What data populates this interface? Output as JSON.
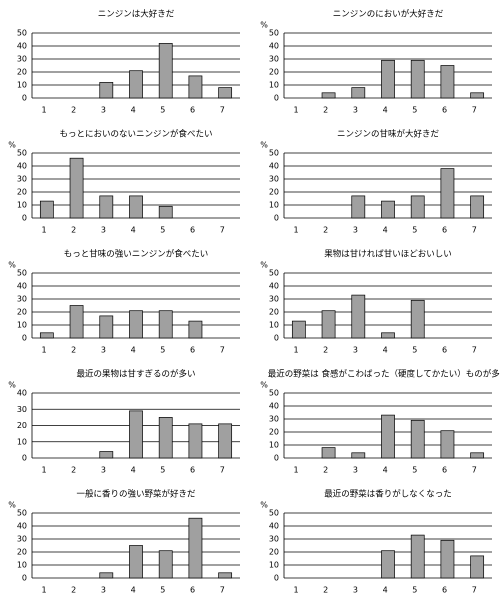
{
  "chart_data": [
    {
      "type": "bar",
      "title": "ニンジンは大好きだ",
      "categories": [
        "1",
        "2",
        "3",
        "4",
        "5",
        "6",
        "7"
      ],
      "values": [
        0,
        0,
        12,
        21,
        42,
        17,
        8
      ],
      "color": "#a0a0a0",
      "ylim": [
        0,
        50
      ],
      "yticks": [
        0,
        10,
        20,
        30,
        40,
        50
      ],
      "grid": true
    },
    {
      "type": "bar",
      "title": "ニンジンのにおいが大好きだ",
      "ylabel": "%",
      "categories": [
        "1",
        "2",
        "3",
        "4",
        "5",
        "6",
        "7"
      ],
      "values": [
        0,
        4,
        8,
        29,
        29,
        25,
        4
      ],
      "color": "#a0a0a0",
      "ylim": [
        0,
        50
      ],
      "yticks": [
        0,
        10,
        20,
        30,
        40,
        50
      ],
      "grid": true
    },
    {
      "type": "bar",
      "title": "もっとにおいのないニンジンが食べたい",
      "ylabel": "%",
      "categories": [
        "1",
        "2",
        "3",
        "4",
        "5",
        "6",
        "7"
      ],
      "values": [
        13,
        46,
        17,
        17,
        9,
        0,
        0
      ],
      "color": "#a0a0a0",
      "ylim": [
        0,
        50
      ],
      "yticks": [
        0,
        10,
        20,
        30,
        40,
        50
      ],
      "grid": true
    },
    {
      "type": "bar",
      "title": "ニンジンの甘味が大好きだ",
      "ylabel": "%",
      "categories": [
        "1",
        "2",
        "3",
        "4",
        "5",
        "6",
        "7"
      ],
      "values": [
        0,
        0,
        17,
        13,
        17,
        38,
        17
      ],
      "color": "#a0a0a0",
      "ylim": [
        0,
        50
      ],
      "yticks": [
        0,
        10,
        20,
        30,
        40,
        50
      ],
      "grid": true
    },
    {
      "type": "bar",
      "title": "もっと甘味の強いニンジンが食べたい",
      "ylabel": "%",
      "categories": [
        "1",
        "2",
        "3",
        "4",
        "5",
        "6",
        "7"
      ],
      "values": [
        4,
        25,
        17,
        21,
        21,
        13,
        0
      ],
      "color": "#a0a0a0",
      "ylim": [
        0,
        50
      ],
      "yticks": [
        0,
        10,
        20,
        30,
        40,
        50
      ],
      "grid": true
    },
    {
      "type": "bar",
      "title": "果物は甘ければ甘いほどおいしい",
      "ylabel": "%",
      "categories": [
        "1",
        "2",
        "3",
        "4",
        "5",
        "6",
        "7"
      ],
      "values": [
        13,
        21,
        33,
        4,
        29,
        0,
        0
      ],
      "color": "#a0a0a0",
      "ylim": [
        0,
        50
      ],
      "yticks": [
        0,
        10,
        20,
        30,
        40,
        50
      ],
      "grid": true
    },
    {
      "type": "bar",
      "title": "最近の果物は甘すぎるのが多い",
      "ylabel": "%",
      "categories": [
        "1",
        "2",
        "3",
        "4",
        "5",
        "6",
        "7"
      ],
      "values": [
        0,
        0,
        4,
        29,
        25,
        21,
        21
      ],
      "color": "#a0a0a0",
      "ylim": [
        0,
        40
      ],
      "yticks": [
        0,
        10,
        20,
        30,
        40
      ],
      "grid": true
    },
    {
      "type": "bar",
      "title": "最近の野菜は 食感がこわばった（硬度してかたい）ものが多い",
      "ylabel": "%",
      "categories": [
        "1",
        "2",
        "3",
        "4",
        "5",
        "6",
        "7"
      ],
      "values": [
        0,
        8,
        4,
        33,
        29,
        21,
        4
      ],
      "color": "#a0a0a0",
      "ylim": [
        0,
        50
      ],
      "yticks": [
        0,
        10,
        20,
        30,
        40,
        50
      ],
      "grid": true
    },
    {
      "type": "bar",
      "title": "一般に香りの強い野菜が好きだ",
      "ylabel": "%",
      "categories": [
        "1",
        "2",
        "3",
        "4",
        "5",
        "6",
        "7"
      ],
      "values": [
        0,
        0,
        4,
        25,
        21,
        46,
        4
      ],
      "color": "#a0a0a0",
      "ylim": [
        0,
        50
      ],
      "yticks": [
        0,
        10,
        20,
        30,
        40,
        50
      ],
      "grid": true
    },
    {
      "type": "bar",
      "title": "最近の野菜は香りがしなくなった",
      "ylabel": "%",
      "categories": [
        "1",
        "2",
        "3",
        "4",
        "5",
        "6",
        "7"
      ],
      "values": [
        0,
        0,
        0,
        21,
        33,
        29,
        17
      ],
      "color": "#a0a0a0",
      "ylim": [
        0,
        50
      ],
      "yticks": [
        0,
        10,
        20,
        30,
        40,
        50
      ],
      "grid": true
    }
  ]
}
